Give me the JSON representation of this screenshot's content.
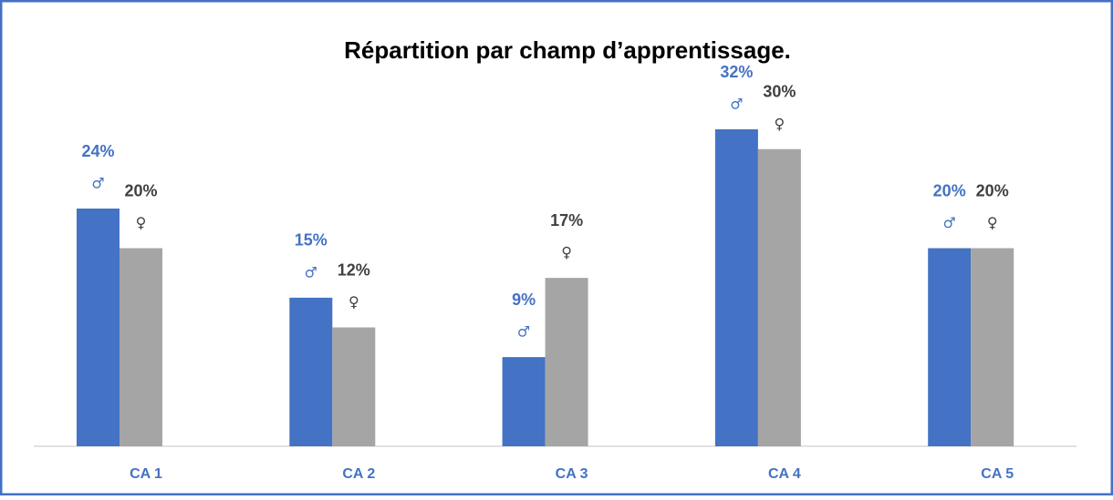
{
  "chart_data": {
    "type": "bar",
    "title": "Répartition par champ d’apprentissage.",
    "categories": [
      "CA 1",
      "CA 2",
      "CA 3",
      "CA 4",
      "CA 5"
    ],
    "series": [
      {
        "name": "♂",
        "color": "#4472c4",
        "label_color": "#4472c4",
        "values": [
          24,
          15,
          9,
          32,
          20
        ],
        "value_labels": [
          "24%",
          "15%",
          "9%",
          "32%",
          "20%"
        ]
      },
      {
        "name": "♀",
        "color": "#a5a5a5",
        "label_color": "#404040",
        "values": [
          20,
          12,
          17,
          30,
          20
        ],
        "value_labels": [
          "20%",
          "12%",
          "17%",
          "30%",
          "20%"
        ]
      }
    ]
  }
}
